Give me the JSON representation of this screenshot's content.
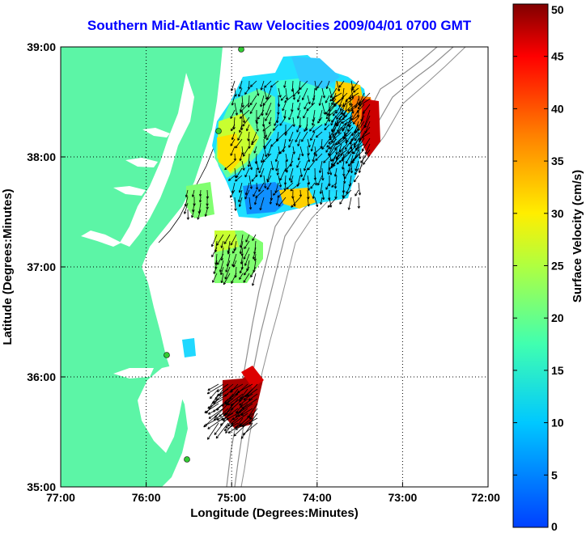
{
  "title": "Southern Mid-Atlantic Raw Velocities 2009/04/01 0700 GMT",
  "xlabel": "Longitude (Degrees:Minutes)",
  "ylabel": "Latitude (Degrees:Minutes)",
  "x_ticks": [
    "77:00",
    "76:00",
    "75:00",
    "74:00",
    "73:00",
    "72:00"
  ],
  "y_ticks": [
    "39:00",
    "38:00",
    "37:00",
    "36:00",
    "35:00"
  ],
  "colorbar": {
    "label": "Surface Velocity (cm/s)",
    "ticks": [
      "0",
      "5",
      "10",
      "15",
      "20",
      "25",
      "30",
      "35",
      "40",
      "45",
      "50"
    ],
    "min": 0,
    "max": 50
  },
  "colors": {
    "land": "#5cf5a6",
    "title": "#0000ff",
    "station": "#33cc33"
  },
  "chart_data": {
    "type": "heatmap",
    "title": "Southern Mid-Atlantic Raw Velocities 2009/04/01 0700 GMT",
    "xlabel": "Longitude (Degrees:Minutes)",
    "ylabel": "Latitude (Degrees:Minutes)",
    "xlim": [
      -77,
      -72
    ],
    "ylim": [
      35,
      39
    ],
    "color_range_cm_s": [
      0,
      50
    ],
    "grid": true,
    "regions": [
      {
        "name": "northern field",
        "lon_range": [
          -75.2,
          -73.4
        ],
        "lat_range": [
          37.5,
          38.9
        ],
        "speed_cm_s": [
          5,
          45
        ]
      },
      {
        "name": "central patch",
        "lon_range": [
          -75.2,
          -74.6
        ],
        "lat_range": [
          36.8,
          37.3
        ],
        "speed_cm_s": [
          15,
          25
        ]
      },
      {
        "name": "southern patch",
        "lon_range": [
          -75.1,
          -74.7
        ],
        "lat_range": [
          35.5,
          36.0
        ],
        "speed_cm_s": [
          45,
          50
        ]
      }
    ]
  }
}
